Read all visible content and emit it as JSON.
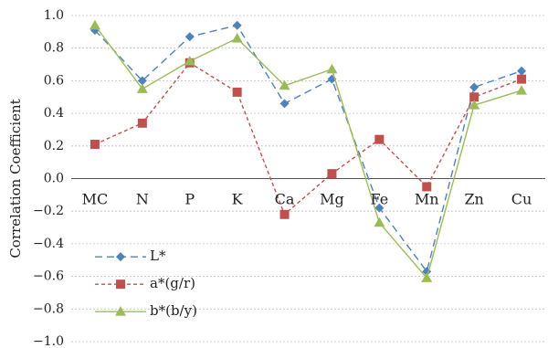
{
  "chart_data": {
    "type": "line",
    "title": "",
    "xlabel": "",
    "ylabel": "Correlation Coefficient",
    "ylim": [
      -1.0,
      1.0
    ],
    "yticks": [
      "1.0",
      "0.8",
      "0.6",
      "0.4",
      "0.2",
      "0.0",
      "−0.2",
      "−0.4",
      "−0.6",
      "−0.8",
      "−1.0"
    ],
    "ytick_values": [
      1.0,
      0.8,
      0.6,
      0.4,
      0.2,
      0.0,
      -0.2,
      -0.4,
      -0.6,
      -0.8,
      -1.0
    ],
    "grid": true,
    "legend_position": "bottom-left",
    "categories": [
      "MC",
      "N",
      "P",
      "K",
      "Ca",
      "Mg",
      "Fe",
      "Mn",
      "Zn",
      "Cu"
    ],
    "series": [
      {
        "name": "L*",
        "values": [
          0.91,
          0.6,
          0.87,
          0.94,
          0.46,
          0.61,
          -0.18,
          -0.57,
          0.56,
          0.66
        ],
        "color": "#4F81BD",
        "dash": "dashed",
        "marker": "diamond"
      },
      {
        "name": "a*(g/r)",
        "values": [
          0.21,
          0.34,
          0.71,
          0.53,
          -0.22,
          0.03,
          0.24,
          -0.05,
          0.5,
          0.61
        ],
        "color": "#C0504D",
        "dash": "dotted",
        "marker": "square"
      },
      {
        "name": "b*(b/y)",
        "values": [
          0.94,
          0.55,
          0.72,
          0.86,
          0.57,
          0.67,
          -0.27,
          -0.61,
          0.45,
          0.54
        ],
        "color": "#9BBB59",
        "dash": "solid",
        "marker": "triangle"
      }
    ]
  }
}
